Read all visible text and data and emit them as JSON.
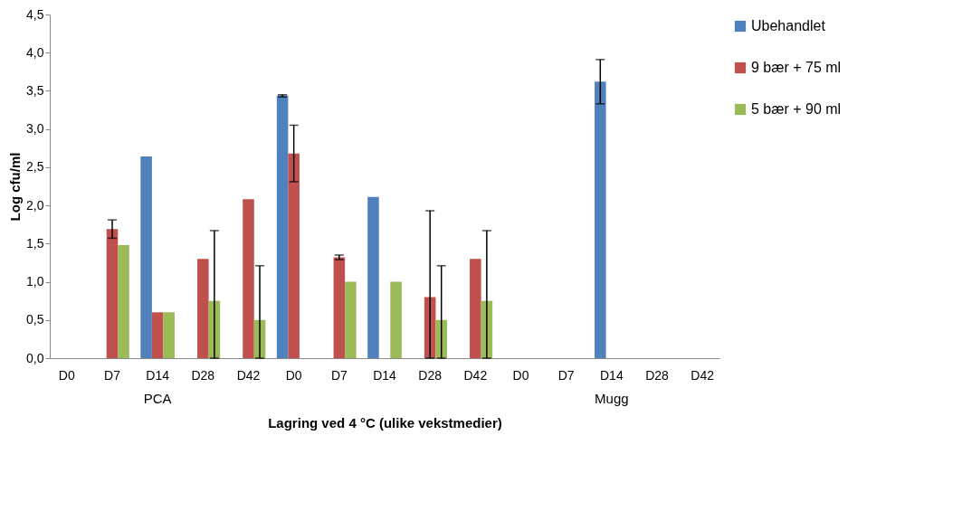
{
  "chart_data": {
    "type": "bar",
    "xlabel": "Lagring ved 4 °C (ulike vekstmedier)",
    "ylabel": "Log cfu/ml",
    "categories": [
      "D0",
      "D7",
      "D14",
      "D28",
      "D42",
      "D0",
      "D7",
      "D14",
      "D28",
      "D42",
      "D0",
      "D7",
      "D14",
      "D28",
      "D42"
    ],
    "annotations": [
      "PCA",
      "Mugg"
    ],
    "series": [
      {
        "name": "Ubehandlet",
        "color": "#4f81bd",
        "values": [
          null,
          null,
          2.64,
          null,
          null,
          3.44,
          null,
          2.11,
          null,
          null,
          null,
          null,
          3.62,
          null,
          null
        ],
        "errors": [
          null,
          null,
          null,
          null,
          null,
          [
            3.42,
            3.45
          ],
          null,
          null,
          null,
          null,
          null,
          null,
          [
            3.33,
            3.91
          ],
          null,
          null
        ]
      },
      {
        "name": "9 bær + 75 ml",
        "color": "#c0504d",
        "values": [
          null,
          1.69,
          0.6,
          1.3,
          2.08,
          2.68,
          1.32,
          null,
          0.8,
          1.3,
          null,
          null,
          null,
          null,
          null
        ],
        "errors": [
          null,
          [
            1.57,
            1.81
          ],
          null,
          null,
          null,
          [
            2.31,
            3.05
          ],
          [
            1.29,
            1.35
          ],
          null,
          [
            0,
            1.93
          ],
          null,
          null,
          null,
          null,
          null,
          null
        ]
      },
      {
        "name": "5 bær + 90 ml",
        "color": "#9bbb59",
        "values": [
          null,
          1.48,
          0.6,
          0.75,
          0.5,
          null,
          1.0,
          1.0,
          0.5,
          0.75,
          null,
          null,
          null,
          null,
          null
        ],
        "errors": [
          null,
          null,
          null,
          [
            0,
            1.67
          ],
          [
            0,
            1.21
          ],
          null,
          null,
          null,
          [
            0,
            1.21
          ],
          [
            0,
            1.67
          ],
          null,
          null,
          null,
          null,
          null
        ]
      }
    ],
    "ylim": [
      0,
      4.5
    ],
    "yticks": [
      {
        "value": 0,
        "label": "0,0"
      },
      {
        "value": 0.5,
        "label": "0,5"
      },
      {
        "value": 1,
        "label": "1,0"
      },
      {
        "value": 1.5,
        "label": "1,5"
      },
      {
        "value": 2,
        "label": "2,0"
      },
      {
        "value": 2.5,
        "label": "2,5"
      },
      {
        "value": 3,
        "label": "3,0"
      },
      {
        "value": 3.5,
        "label": "3,5"
      },
      {
        "value": 4,
        "label": "4,0"
      },
      {
        "value": 4.5,
        "label": "4,5"
      }
    ],
    "grid": false,
    "legend": "right"
  }
}
